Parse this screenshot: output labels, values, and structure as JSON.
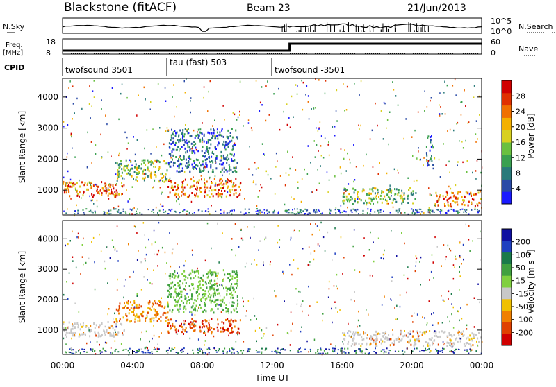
{
  "header": {
    "station": "Blackstone (fitACF)",
    "beam": "Beam 23",
    "date": "21/Jun/2013"
  },
  "noise_panel": {
    "left_label": "N.Sky",
    "right_label": "N.Search",
    "right_ticks": [
      "10^5",
      "10^0"
    ]
  },
  "freq_panel": {
    "left_label_line1": "Freq.",
    "left_label_line2": "[MHz]",
    "left_ticks": [
      "18",
      "8"
    ],
    "right_label": "Nave",
    "right_ticks": [
      "60",
      "0"
    ]
  },
  "cpid": {
    "label": "CPID",
    "segments": [
      "twofsound 3501",
      "tau (fast) 503",
      "twofsound -3501"
    ]
  },
  "chart_data": [
    {
      "type": "heatmap",
      "title": "",
      "xlabel": "",
      "ylabel": "Slant Range [km]",
      "ylim": [
        200,
        4600
      ],
      "yticks": [
        "1000",
        "2000",
        "3000",
        "4000"
      ],
      "colorbar": {
        "label": "Power [dB]",
        "ticks": [
          "4",
          "8",
          "12",
          "16",
          "20",
          "24",
          "28"
        ],
        "colors": [
          "#1a1aff",
          "#2a4aa6",
          "#2a7a7a",
          "#3aa050",
          "#6ac040",
          "#d8d020",
          "#f4b000",
          "#f07000",
          "#e03000",
          "#d00000"
        ]
      },
      "echo_bands": [
        {
          "from_hour": 0.0,
          "to_hour": 3.5,
          "range_km": [
            800,
            1300
          ],
          "level": "high"
        },
        {
          "from_hour": 3.0,
          "to_hour": 6.0,
          "range_km": [
            1300,
            2000
          ],
          "level": "medium"
        },
        {
          "from_hour": 6.0,
          "to_hour": 10.2,
          "range_km": [
            800,
            1400
          ],
          "level": "high"
        },
        {
          "from_hour": 6.0,
          "to_hour": 10.0,
          "range_km": [
            1600,
            3000
          ],
          "level": "low"
        },
        {
          "from_hour": 16.0,
          "to_hour": 20.2,
          "range_km": [
            600,
            1100
          ],
          "level": "medium"
        },
        {
          "from_hour": 20.8,
          "to_hour": 21.2,
          "range_km": [
            1800,
            2800
          ],
          "level": "low"
        },
        {
          "from_hour": 21.3,
          "to_hour": 24.0,
          "range_km": [
            500,
            1000
          ],
          "level": "high"
        }
      ]
    },
    {
      "type": "heatmap",
      "title": "",
      "xlabel": "Time UT",
      "ylabel": "Slant Range [km]",
      "ylim": [
        200,
        4600
      ],
      "yticks": [
        "1000",
        "2000",
        "3000",
        "4000"
      ],
      "xticks": [
        "00:00",
        "04:00",
        "08:00",
        "12:00",
        "16:00",
        "20:00",
        "00:00"
      ],
      "colorbar": {
        "label": "Velocity [m s⁻¹]",
        "ticks": [
          "200",
          "100",
          "50",
          "15",
          "-15",
          "-50",
          "-100",
          "-200"
        ],
        "colors": [
          "#1010a0",
          "#2040c0",
          "#1a7a4a",
          "#40a040",
          "#80d040",
          "#c8c8c8",
          "#f0c000",
          "#f08000",
          "#e04000",
          "#d00000"
        ]
      },
      "echo_bands": [
        {
          "from_hour": 0.0,
          "to_hour": 3.5,
          "range_km": [
            800,
            1300
          ],
          "level": "ground"
        },
        {
          "from_hour": 3.0,
          "to_hour": 6.0,
          "range_km": [
            1300,
            2000
          ],
          "level": "toward"
        },
        {
          "from_hour": 6.0,
          "to_hour": 10.2,
          "range_km": [
            900,
            1400
          ],
          "level": "away"
        },
        {
          "from_hour": 6.0,
          "to_hour": 10.0,
          "range_km": [
            1600,
            3000
          ],
          "level": "toward_weak"
        },
        {
          "from_hour": 16.0,
          "to_hour": 24.0,
          "range_km": [
            500,
            1000
          ],
          "level": "ground"
        }
      ]
    }
  ]
}
